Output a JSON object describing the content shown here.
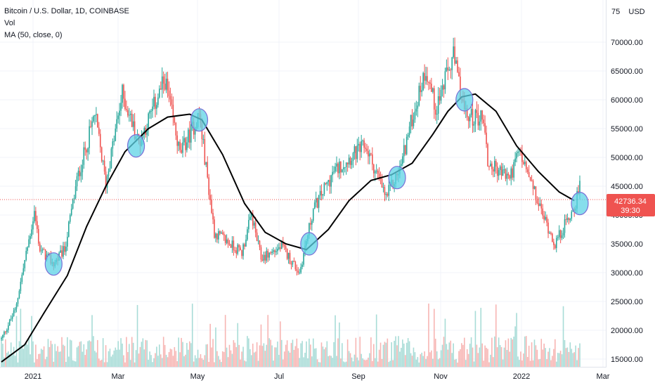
{
  "legend": {
    "symbol": "Bitcoin / U.S. Dollar, 1D, COINBASE",
    "volume": "Vol",
    "ma": "MA (50, close, 0)"
  },
  "currency_label": "USD",
  "price_tag": {
    "value": "42736.34",
    "countdown": "39:30"
  },
  "colors": {
    "up": "#26a69a",
    "down": "#ef5350",
    "ma": "#000000",
    "highlight_fill": "#5dd3e6",
    "highlight_stroke": "#7a6fd6",
    "grid": "#f0f3fa",
    "price_tag": "#ef5350"
  },
  "chart_data": {
    "type": "candlestick",
    "title": "Bitcoin / U.S. Dollar, 1D, COINBASE",
    "x_ticks": [
      "2021",
      "Mar",
      "May",
      "Jul",
      "Sep",
      "Nov",
      "2022",
      "Mar"
    ],
    "y_ticks": [
      "75",
      "70000.00",
      "65000.00",
      "60000.00",
      "55000.00",
      "50000.00",
      "45000.00",
      "40000.00",
      "35000.00",
      "30000.00",
      "25000.00",
      "20000.00",
      "15000.00"
    ],
    "ylim": [
      14000,
      77000
    ],
    "last_price": 42736.34,
    "ma_50": [
      [
        "2020-12-15",
        14500
      ],
      [
        "2021-01-01",
        17500
      ],
      [
        "2021-01-15",
        23000
      ],
      [
        "2021-02-01",
        29500
      ],
      [
        "2021-02-15",
        38000
      ],
      [
        "2021-03-01",
        45000
      ],
      [
        "2021-03-15",
        51000
      ],
      [
        "2021-04-01",
        55000
      ],
      [
        "2021-04-15",
        57000
      ],
      [
        "2021-05-01",
        57500
      ],
      [
        "2021-05-10",
        56500
      ],
      [
        "2021-05-25",
        50500
      ],
      [
        "2021-06-10",
        42000
      ],
      [
        "2021-06-25",
        37000
      ],
      [
        "2021-07-10",
        35000
      ],
      [
        "2021-07-25",
        34000
      ],
      [
        "2021-08-10",
        37500
      ],
      [
        "2021-08-25",
        42500
      ],
      [
        "2021-09-10",
        46000
      ],
      [
        "2021-09-25",
        47000
      ],
      [
        "2021-10-10",
        49000
      ],
      [
        "2021-10-25",
        54000
      ],
      [
        "2021-11-05",
        58000
      ],
      [
        "2021-11-15",
        60500
      ],
      [
        "2021-11-25",
        61000
      ],
      [
        "2021-12-10",
        58000
      ],
      [
        "2021-12-25",
        52000
      ],
      [
        "2022-01-10",
        47500
      ],
      [
        "2022-01-25",
        44000
      ],
      [
        "2022-02-05",
        42500
      ]
    ],
    "highlight_circles": [
      [
        "2021-01-22",
        31500
      ],
      [
        "2021-03-23",
        52000
      ],
      [
        "2021-05-08",
        56500
      ],
      [
        "2021-07-27",
        35000
      ],
      [
        "2021-09-29",
        46500
      ],
      [
        "2021-11-17",
        60000
      ],
      [
        "2022-02-09",
        42000
      ]
    ]
  }
}
